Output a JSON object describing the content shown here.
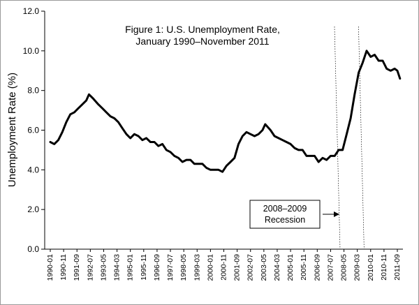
{
  "chart_data": {
    "type": "line",
    "title": "Figure 1: U.S. Unemployment Rate,",
    "subtitle": "January 1990–November 2011",
    "ylabel": "Unemployment Rate (%)",
    "xlabel": "",
    "ylim": [
      0,
      12
    ],
    "yticks": [
      "0.0",
      "2.0",
      "4.0",
      "6.0",
      "8.0",
      "10.0",
      "12.0"
    ],
    "xticks": [
      "1990-01",
      "1990-11",
      "1991-09",
      "1992-07",
      "1993-05",
      "1994-03",
      "1995-01",
      "1995-11",
      "1996-09",
      "1997-07",
      "1998-05",
      "1999-03",
      "2000-01",
      "2000-11",
      "2001-09",
      "2002-07",
      "2003-05",
      "2004-03",
      "2005-01",
      "2005-11",
      "2006-09",
      "2007-07",
      "2008-05",
      "2009-03",
      "2010-01",
      "2010-11",
      "2011-09"
    ],
    "grid": false,
    "legend": "none",
    "line_color": "#000000",
    "recession_start": "2007-12",
    "recession_end": "2009-06",
    "annotation": {
      "line1": "2008–2009",
      "line2": "Recession"
    },
    "series": [
      {
        "x": [
          "1990-01",
          "1990-04",
          "1990-07",
          "1990-10",
          "1991-01",
          "1991-04",
          "1991-07",
          "1991-10",
          "1992-01",
          "1992-04",
          "1992-06",
          "1992-09",
          "1993-01",
          "1993-04",
          "1993-07",
          "1993-10",
          "1994-01",
          "1994-04",
          "1994-07",
          "1994-10",
          "1995-01",
          "1995-04",
          "1995-07",
          "1995-10",
          "1996-01",
          "1996-04",
          "1996-07",
          "1996-10",
          "1997-01",
          "1997-04",
          "1997-07",
          "1997-10",
          "1998-01",
          "1998-04",
          "1998-07",
          "1998-10",
          "1999-01",
          "1999-04",
          "1999-07",
          "1999-10",
          "2000-01",
          "2000-04",
          "2000-07",
          "2000-10",
          "2001-01",
          "2001-04",
          "2001-07",
          "2001-10",
          "2002-01",
          "2002-04",
          "2002-07",
          "2002-10",
          "2003-01",
          "2003-04",
          "2003-06",
          "2003-10",
          "2004-01",
          "2004-04",
          "2004-07",
          "2004-10",
          "2005-01",
          "2005-04",
          "2005-07",
          "2005-10",
          "2006-01",
          "2006-04",
          "2006-07",
          "2006-10",
          "2007-01",
          "2007-04",
          "2007-07",
          "2007-10",
          "2008-01",
          "2008-04",
          "2008-07",
          "2008-10",
          "2009-01",
          "2009-04",
          "2009-07",
          "2009-10",
          "2010-01",
          "2010-04",
          "2010-07",
          "2010-10",
          "2011-01",
          "2011-04",
          "2011-07",
          "2011-09",
          "2011-11"
        ],
        "values": [
          5.4,
          5.3,
          5.5,
          5.9,
          6.4,
          6.8,
          6.9,
          7.1,
          7.3,
          7.5,
          7.8,
          7.6,
          7.3,
          7.1,
          6.9,
          6.7,
          6.6,
          6.4,
          6.1,
          5.8,
          5.6,
          5.8,
          5.7,
          5.5,
          5.6,
          5.4,
          5.4,
          5.2,
          5.3,
          5.0,
          4.9,
          4.7,
          4.6,
          4.4,
          4.5,
          4.5,
          4.3,
          4.3,
          4.3,
          4.1,
          4.0,
          4.0,
          4.0,
          3.9,
          4.2,
          4.4,
          4.6,
          5.3,
          5.7,
          5.9,
          5.8,
          5.7,
          5.8,
          6.0,
          6.3,
          6.0,
          5.7,
          5.6,
          5.5,
          5.4,
          5.3,
          5.1,
          5.0,
          5.0,
          4.7,
          4.7,
          4.7,
          4.4,
          4.6,
          4.5,
          4.7,
          4.7,
          5.0,
          5.0,
          5.8,
          6.6,
          7.8,
          8.9,
          9.4,
          10.0,
          9.7,
          9.8,
          9.5,
          9.5,
          9.1,
          9.0,
          9.1,
          9.0,
          8.6
        ]
      }
    ]
  }
}
